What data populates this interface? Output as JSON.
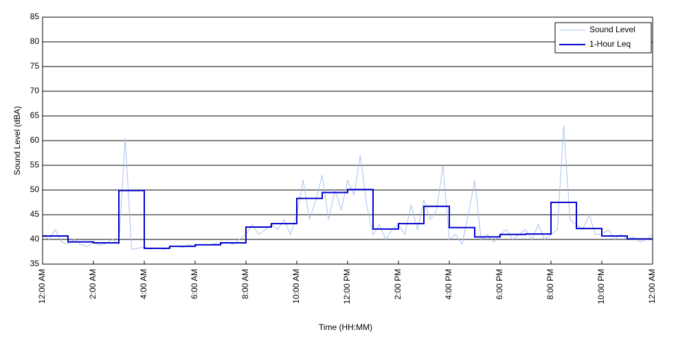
{
  "chart_data": {
    "type": "line",
    "x_label": "Time (HH:MM)",
    "y_label": "Sound Level (dBA)",
    "xlim": [
      0,
      24
    ],
    "ylim": [
      35,
      85
    ],
    "xticks": [
      {
        "value": 0,
        "label": "12:00 AM"
      },
      {
        "value": 2,
        "label": "2:00 AM"
      },
      {
        "value": 4,
        "label": "4:00 AM"
      },
      {
        "value": 6,
        "label": "6:00 AM"
      },
      {
        "value": 8,
        "label": "8:00 AM"
      },
      {
        "value": 10,
        "label": "10:00 AM"
      },
      {
        "value": 12,
        "label": "12:00 PM"
      },
      {
        "value": 14,
        "label": "2:00 PM"
      },
      {
        "value": 16,
        "label": "4:00 PM"
      },
      {
        "value": 18,
        "label": "6:00 PM"
      },
      {
        "value": 20,
        "label": "8:00 PM"
      },
      {
        "value": 22,
        "label": "10:00 PM"
      },
      {
        "value": 24,
        "label": "12:00 AM"
      }
    ],
    "yticks": [
      35,
      40,
      45,
      50,
      55,
      60,
      65,
      70,
      75,
      80,
      85
    ],
    "grid": true,
    "legend": "upper right",
    "series": [
      {
        "name": "Sound Level",
        "color": "#a8c0f0",
        "x": [
          0,
          0.25,
          0.5,
          0.75,
          1,
          1.25,
          1.5,
          1.75,
          2,
          2.25,
          2.5,
          2.75,
          3,
          3.25,
          3.5,
          3.75,
          4,
          4.25,
          4.5,
          4.75,
          5,
          5.25,
          5.5,
          5.75,
          6,
          6.25,
          6.5,
          6.75,
          7,
          7.25,
          7.5,
          7.75,
          8,
          8.25,
          8.5,
          8.75,
          9,
          9.25,
          9.5,
          9.75,
          10,
          10.25,
          10.5,
          10.75,
          11,
          11.25,
          11.5,
          11.75,
          12,
          12.25,
          12.5,
          12.75,
          13,
          13.25,
          13.5,
          13.75,
          14,
          14.25,
          14.5,
          14.75,
          15,
          15.25,
          15.5,
          15.75,
          16,
          16.25,
          16.5,
          16.75,
          17,
          17.25,
          17.5,
          17.75,
          18,
          18.25,
          18.5,
          18.75,
          19,
          19.25,
          19.5,
          19.75,
          20,
          20.25,
          20.5,
          20.75,
          21,
          21.25,
          21.5,
          21.75,
          22,
          22.25,
          22.5,
          22.75,
          23,
          23.25,
          23.5,
          23.75,
          24
        ],
        "values": [
          41,
          40,
          42,
          39.5,
          39,
          40,
          39,
          38.5,
          39.5,
          38.8,
          39.2,
          40,
          39,
          60.5,
          38,
          38.2,
          38.5,
          38,
          38.3,
          38,
          38.5,
          38.7,
          38.4,
          39,
          38.6,
          39,
          38.8,
          39.2,
          39,
          39.5,
          39,
          40,
          41,
          43,
          41,
          42,
          43,
          42,
          44,
          41,
          45,
          52,
          44,
          48,
          53,
          44,
          50,
          46,
          52,
          49,
          57,
          47,
          41,
          43,
          40,
          42,
          43,
          41,
          47,
          42,
          48,
          44,
          46,
          55,
          40,
          41,
          39,
          45,
          52,
          40,
          41,
          39.5,
          41,
          42,
          40,
          41,
          42,
          40,
          43,
          40,
          41,
          42,
          63,
          44,
          43,
          42,
          45,
          41,
          41,
          42,
          40,
          41,
          40,
          40.5,
          39.5,
          40,
          41
        ]
      },
      {
        "name": "1-Hour Leq",
        "color": "#0000cc",
        "step": "post",
        "x": [
          0,
          1,
          2,
          3,
          4,
          5,
          6,
          7,
          8,
          9,
          10,
          11,
          12,
          13,
          14,
          15,
          16,
          17,
          18,
          19,
          20,
          21,
          22,
          23
        ],
        "values": [
          40.7,
          39.5,
          39.3,
          49.9,
          38.2,
          38.6,
          38.9,
          39.3,
          42.5,
          43.2,
          48.3,
          49.5,
          50.1,
          42.1,
          43.2,
          46.7,
          42.4,
          40.5,
          41.0,
          41.1,
          47.5,
          42.2,
          40.7,
          40.1
        ]
      }
    ]
  }
}
